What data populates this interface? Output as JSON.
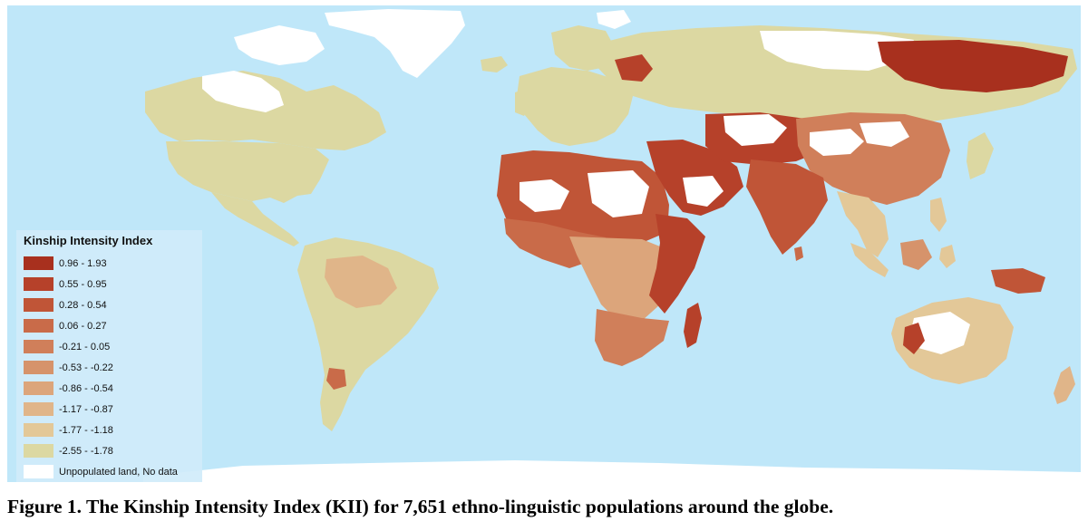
{
  "map": {
    "ocean_color": "#bfe7f9",
    "no_data_color": "#ffffff",
    "regions": [
      {
        "name": "greenland",
        "cls": 10
      },
      {
        "name": "canada",
        "cls": 0
      },
      {
        "name": "canada-arctic-islands",
        "cls": 10
      },
      {
        "name": "canada-north",
        "cls": 10
      },
      {
        "name": "usa",
        "cls": 0
      },
      {
        "name": "central-america",
        "cls": 0
      },
      {
        "name": "south-america",
        "cls": 0
      },
      {
        "name": "south-america-interior",
        "cls": 2
      },
      {
        "name": "argentina-patch",
        "cls": 6
      },
      {
        "name": "europe",
        "cls": 0
      },
      {
        "name": "britain",
        "cls": 0
      },
      {
        "name": "scandinavia",
        "cls": 0
      },
      {
        "name": "north-africa",
        "cls": 7
      },
      {
        "name": "sahara-west",
        "cls": 10
      },
      {
        "name": "sahara-east",
        "cls": 10
      },
      {
        "name": "west-africa",
        "cls": 6
      },
      {
        "name": "central-africa",
        "cls": 3
      },
      {
        "name": "east-africa",
        "cls": 8
      },
      {
        "name": "southern-africa",
        "cls": 5
      },
      {
        "name": "madagascar",
        "cls": 8
      },
      {
        "name": "arabia",
        "cls": 8
      },
      {
        "name": "rub-al-khali",
        "cls": 10
      },
      {
        "name": "russia",
        "cls": 0
      },
      {
        "name": "siberia-north",
        "cls": 10
      },
      {
        "name": "siberia-red",
        "cls": 9
      },
      {
        "name": "russia-west-red",
        "cls": 8
      },
      {
        "name": "central-asia",
        "cls": 8
      },
      {
        "name": "kazakh-desert",
        "cls": 10
      },
      {
        "name": "china",
        "cls": 5
      },
      {
        "name": "taklamakan",
        "cls": 10
      },
      {
        "name": "gobi",
        "cls": 10
      },
      {
        "name": "india",
        "cls": 7
      },
      {
        "name": "southeast-asia",
        "cls": 1
      },
      {
        "name": "indonesia-sumatra",
        "cls": 1
      },
      {
        "name": "indonesia-borneo",
        "cls": 4
      },
      {
        "name": "indonesia-sulawesi",
        "cls": 1
      },
      {
        "name": "new-guinea",
        "cls": 7
      },
      {
        "name": "philippines",
        "cls": 1
      },
      {
        "name": "japan",
        "cls": 0
      },
      {
        "name": "australia",
        "cls": 1
      },
      {
        "name": "australia-interior",
        "cls": 10
      },
      {
        "name": "australia-red",
        "cls": 8
      },
      {
        "name": "new-zealand",
        "cls": 2
      },
      {
        "name": "antarctica",
        "cls": 10
      },
      {
        "name": "svalbard",
        "cls": 10
      },
      {
        "name": "iceland",
        "cls": 0
      },
      {
        "name": "sri-lanka",
        "cls": 6
      }
    ]
  },
  "legend": {
    "title": "Kinship Intensity Index",
    "items": [
      {
        "label": "0.96 - 1.93",
        "color": "#a8301e"
      },
      {
        "label": "0.55 - 0.95",
        "color": "#b6412a"
      },
      {
        "label": "0.28 - 0.54",
        "color": "#c05537"
      },
      {
        "label": "0.06 - 0.27",
        "color": "#c96b49"
      },
      {
        "label": "-0.21 - 0.05",
        "color": "#d07f5a"
      },
      {
        "label": "-0.53 - -0.22",
        "color": "#d6936b"
      },
      {
        "label": "-0.86 - -0.54",
        "color": "#dca57b"
      },
      {
        "label": "-1.17 - -0.87",
        "color": "#e0b589"
      },
      {
        "label": "-1.77 - -1.18",
        "color": "#e3c898"
      },
      {
        "label": "-2.55 - -1.78",
        "color": "#dcd8a2"
      },
      {
        "label": "Unpopulated land, No data",
        "color": "#ffffff"
      }
    ]
  },
  "caption": "Figure 1. The Kinship Intensity Index (KII) for 7,651 ethno-linguistic populations around the globe."
}
